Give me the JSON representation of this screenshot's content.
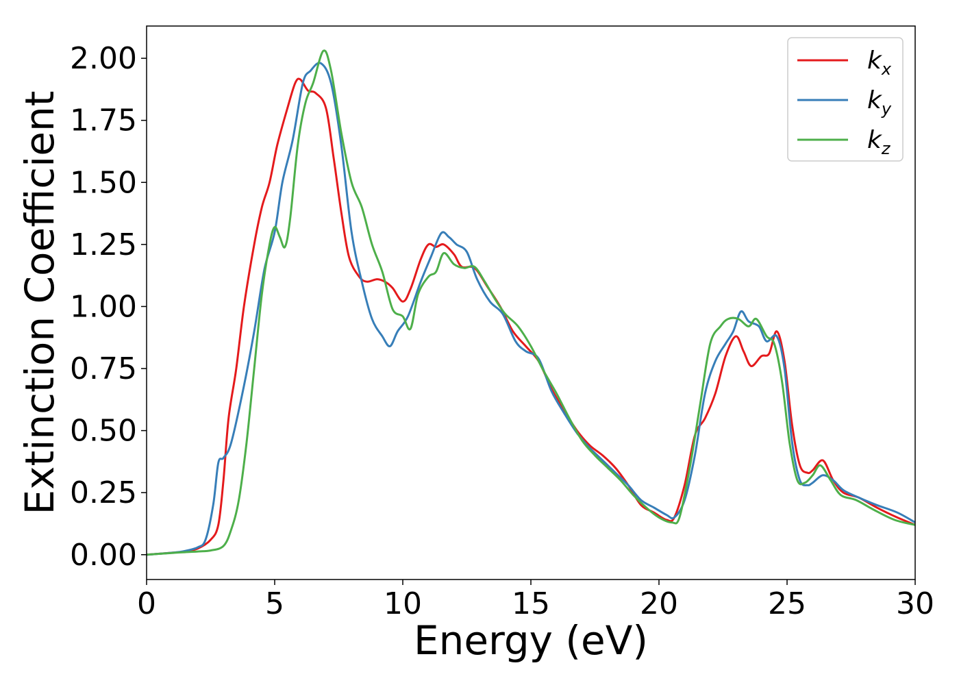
{
  "chart_data": {
    "type": "line",
    "xlabel": "Energy (eV)",
    "ylabel": "Extinction Coefficient",
    "xlim": [
      0,
      30
    ],
    "ylim": [
      -0.1,
      2.13
    ],
    "xticks": [
      "0",
      "5",
      "10",
      "15",
      "20",
      "25",
      "30"
    ],
    "yticks": [
      "0.00",
      "0.25",
      "0.50",
      "0.75",
      "1.00",
      "1.25",
      "1.50",
      "1.75",
      "2.00"
    ],
    "grid": false,
    "legend_position": "top-right",
    "series": [
      {
        "name": "k",
        "subscript": "x",
        "color": "#e41a1c",
        "points": [
          [
            0,
            0
          ],
          [
            1,
            0.008
          ],
          [
            1.5,
            0.013
          ],
          [
            2,
            0.025
          ],
          [
            2.5,
            0.06
          ],
          [
            2.8,
            0.12
          ],
          [
            3,
            0.3
          ],
          [
            3.2,
            0.55
          ],
          [
            3.5,
            0.75
          ],
          [
            3.8,
            1.0
          ],
          [
            4.2,
            1.25
          ],
          [
            4.5,
            1.4
          ],
          [
            4.8,
            1.5
          ],
          [
            5.1,
            1.65
          ],
          [
            5.5,
            1.8
          ],
          [
            5.8,
            1.9
          ],
          [
            6,
            1.915
          ],
          [
            6.3,
            1.87
          ],
          [
            6.6,
            1.86
          ],
          [
            7,
            1.8
          ],
          [
            7.3,
            1.6
          ],
          [
            7.6,
            1.38
          ],
          [
            7.9,
            1.2
          ],
          [
            8.3,
            1.12
          ],
          [
            8.6,
            1.1
          ],
          [
            9,
            1.11
          ],
          [
            9.3,
            1.1
          ],
          [
            9.6,
            1.075
          ],
          [
            10,
            1.02
          ],
          [
            10.3,
            1.07
          ],
          [
            10.7,
            1.19
          ],
          [
            11,
            1.25
          ],
          [
            11.3,
            1.24
          ],
          [
            11.6,
            1.25
          ],
          [
            12,
            1.21
          ],
          [
            12.3,
            1.16
          ],
          [
            12.8,
            1.155
          ],
          [
            13.3,
            1.08
          ],
          [
            13.8,
            1.0
          ],
          [
            14.3,
            0.9
          ],
          [
            14.8,
            0.84
          ],
          [
            15.3,
            0.78
          ],
          [
            15.8,
            0.67
          ],
          [
            16.3,
            0.58
          ],
          [
            16.8,
            0.5
          ],
          [
            17.3,
            0.44
          ],
          [
            17.8,
            0.4
          ],
          [
            18.3,
            0.35
          ],
          [
            18.8,
            0.28
          ],
          [
            19.3,
            0.2
          ],
          [
            19.8,
            0.17
          ],
          [
            20.3,
            0.14
          ],
          [
            20.6,
            0.15
          ],
          [
            21,
            0.28
          ],
          [
            21.4,
            0.48
          ],
          [
            21.8,
            0.55
          ],
          [
            22.2,
            0.65
          ],
          [
            22.6,
            0.8
          ],
          [
            23,
            0.88
          ],
          [
            23.3,
            0.82
          ],
          [
            23.6,
            0.76
          ],
          [
            24,
            0.8
          ],
          [
            24.3,
            0.81
          ],
          [
            24.6,
            0.9
          ],
          [
            24.9,
            0.78
          ],
          [
            25.2,
            0.52
          ],
          [
            25.5,
            0.36
          ],
          [
            25.8,
            0.33
          ],
          [
            26,
            0.34
          ],
          [
            26.4,
            0.38
          ],
          [
            26.8,
            0.3
          ],
          [
            27.2,
            0.25
          ],
          [
            27.8,
            0.23
          ],
          [
            28.5,
            0.19
          ],
          [
            29.3,
            0.15
          ],
          [
            30,
            0.12
          ]
        ]
      },
      {
        "name": "k",
        "subscript": "y",
        "color": "#377eb8",
        "points": [
          [
            0,
            0
          ],
          [
            1,
            0.008
          ],
          [
            1.5,
            0.015
          ],
          [
            2,
            0.03
          ],
          [
            2.3,
            0.06
          ],
          [
            2.6,
            0.2
          ],
          [
            2.8,
            0.37
          ],
          [
            3,
            0.39
          ],
          [
            3.3,
            0.45
          ],
          [
            3.8,
            0.68
          ],
          [
            4.2,
            0.9
          ],
          [
            4.6,
            1.15
          ],
          [
            5,
            1.3
          ],
          [
            5.3,
            1.5
          ],
          [
            5.7,
            1.67
          ],
          [
            6.1,
            1.9
          ],
          [
            6.4,
            1.95
          ],
          [
            6.8,
            1.98
          ],
          [
            7.2,
            1.9
          ],
          [
            7.6,
            1.65
          ],
          [
            8,
            1.3
          ],
          [
            8.4,
            1.1
          ],
          [
            8.8,
            0.95
          ],
          [
            9.2,
            0.88
          ],
          [
            9.5,
            0.84
          ],
          [
            9.8,
            0.9
          ],
          [
            10.2,
            0.96
          ],
          [
            10.7,
            1.1
          ],
          [
            11.1,
            1.2
          ],
          [
            11.5,
            1.295
          ],
          [
            11.8,
            1.28
          ],
          [
            12.1,
            1.25
          ],
          [
            12.5,
            1.22
          ],
          [
            12.9,
            1.11
          ],
          [
            13.4,
            1.02
          ],
          [
            13.9,
            0.97
          ],
          [
            14.4,
            0.86
          ],
          [
            14.8,
            0.82
          ],
          [
            15.3,
            0.79
          ],
          [
            15.8,
            0.66
          ],
          [
            16.3,
            0.57
          ],
          [
            16.8,
            0.49
          ],
          [
            17.3,
            0.43
          ],
          [
            17.8,
            0.38
          ],
          [
            18.3,
            0.33
          ],
          [
            18.8,
            0.28
          ],
          [
            19.3,
            0.22
          ],
          [
            19.8,
            0.19
          ],
          [
            20.3,
            0.16
          ],
          [
            20.6,
            0.15
          ],
          [
            21,
            0.22
          ],
          [
            21.4,
            0.4
          ],
          [
            21.8,
            0.65
          ],
          [
            22.2,
            0.78
          ],
          [
            22.6,
            0.85
          ],
          [
            22.9,
            0.9
          ],
          [
            23.2,
            0.98
          ],
          [
            23.5,
            0.94
          ],
          [
            23.9,
            0.92
          ],
          [
            24.2,
            0.86
          ],
          [
            24.6,
            0.88
          ],
          [
            24.9,
            0.75
          ],
          [
            25.2,
            0.45
          ],
          [
            25.5,
            0.3
          ],
          [
            25.8,
            0.28
          ],
          [
            26,
            0.29
          ],
          [
            26.4,
            0.32
          ],
          [
            26.8,
            0.3
          ],
          [
            27.2,
            0.26
          ],
          [
            27.8,
            0.23
          ],
          [
            28.5,
            0.2
          ],
          [
            29.3,
            0.17
          ],
          [
            30,
            0.13
          ]
        ]
      },
      {
        "name": "k",
        "subscript": "z",
        "color": "#4daf4a",
        "points": [
          [
            0,
            0
          ],
          [
            1,
            0.007
          ],
          [
            1.5,
            0.01
          ],
          [
            2,
            0.013
          ],
          [
            2.5,
            0.017
          ],
          [
            3,
            0.035
          ],
          [
            3.3,
            0.1
          ],
          [
            3.6,
            0.22
          ],
          [
            3.9,
            0.45
          ],
          [
            4.2,
            0.75
          ],
          [
            4.5,
            1.05
          ],
          [
            4.8,
            1.25
          ],
          [
            5,
            1.32
          ],
          [
            5.2,
            1.28
          ],
          [
            5.4,
            1.24
          ],
          [
            5.6,
            1.35
          ],
          [
            5.9,
            1.65
          ],
          [
            6.2,
            1.82
          ],
          [
            6.5,
            1.9
          ],
          [
            6.9,
            2.03
          ],
          [
            7.2,
            1.95
          ],
          [
            7.6,
            1.7
          ],
          [
            8,
            1.5
          ],
          [
            8.4,
            1.4
          ],
          [
            8.8,
            1.25
          ],
          [
            9.2,
            1.14
          ],
          [
            9.6,
            0.99
          ],
          [
            10,
            0.96
          ],
          [
            10.3,
            0.91
          ],
          [
            10.6,
            1.05
          ],
          [
            11,
            1.12
          ],
          [
            11.3,
            1.14
          ],
          [
            11.6,
            1.215
          ],
          [
            12,
            1.17
          ],
          [
            12.4,
            1.155
          ],
          [
            12.8,
            1.16
          ],
          [
            13.2,
            1.1
          ],
          [
            13.6,
            1.03
          ],
          [
            14,
            0.97
          ],
          [
            14.5,
            0.92
          ],
          [
            15,
            0.84
          ],
          [
            15.5,
            0.74
          ],
          [
            16,
            0.65
          ],
          [
            16.5,
            0.55
          ],
          [
            17,
            0.46
          ],
          [
            17.5,
            0.4
          ],
          [
            18,
            0.35
          ],
          [
            18.5,
            0.3
          ],
          [
            19,
            0.24
          ],
          [
            19.5,
            0.19
          ],
          [
            20,
            0.15
          ],
          [
            20.5,
            0.13
          ],
          [
            20.8,
            0.15
          ],
          [
            21.2,
            0.35
          ],
          [
            21.6,
            0.6
          ],
          [
            22,
            0.85
          ],
          [
            22.4,
            0.92
          ],
          [
            22.7,
            0.95
          ],
          [
            23.1,
            0.95
          ],
          [
            23.5,
            0.92
          ],
          [
            23.8,
            0.95
          ],
          [
            24.2,
            0.88
          ],
          [
            24.5,
            0.85
          ],
          [
            24.8,
            0.7
          ],
          [
            25.1,
            0.45
          ],
          [
            25.4,
            0.3
          ],
          [
            25.7,
            0.29
          ],
          [
            26,
            0.32
          ],
          [
            26.3,
            0.36
          ],
          [
            26.7,
            0.3
          ],
          [
            27.1,
            0.24
          ],
          [
            27.7,
            0.22
          ],
          [
            28.4,
            0.18
          ],
          [
            29.2,
            0.14
          ],
          [
            30,
            0.12
          ]
        ]
      }
    ]
  }
}
